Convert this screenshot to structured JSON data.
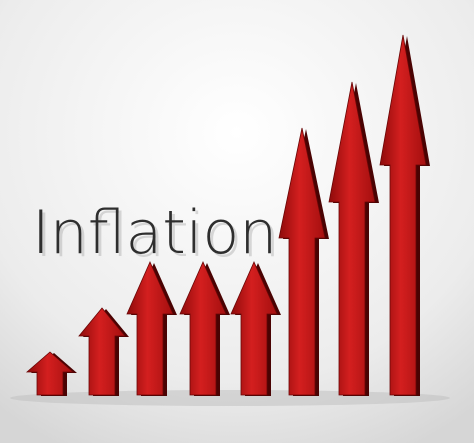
{
  "title": "Inflation"
}
